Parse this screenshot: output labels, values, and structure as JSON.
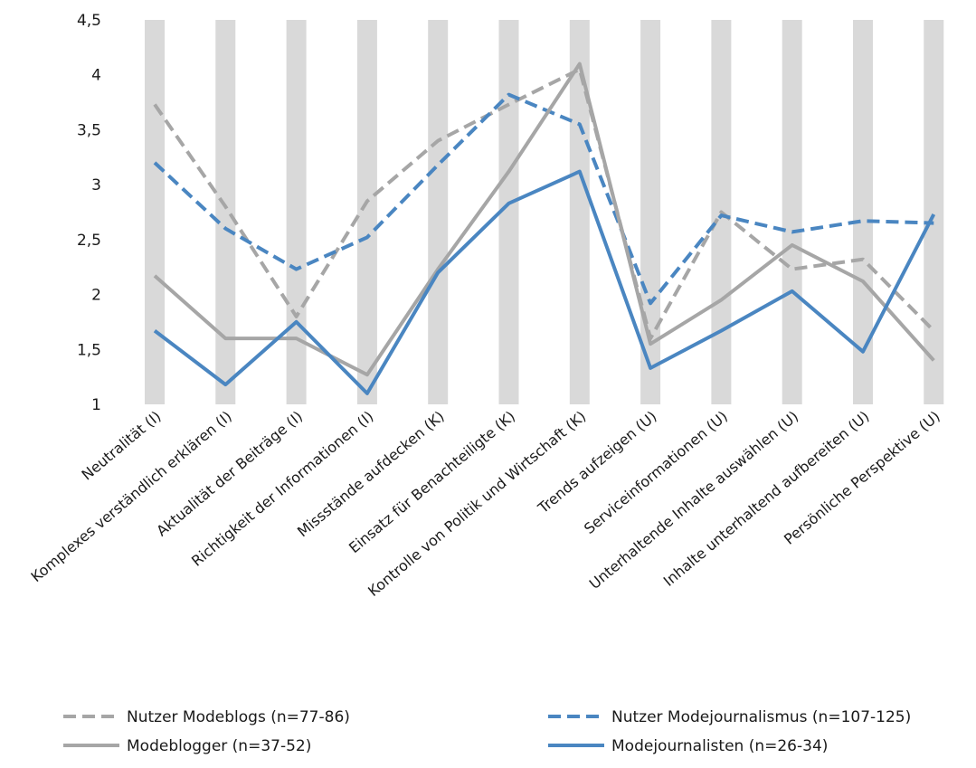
{
  "chart_data": {
    "type": "line",
    "categories": [
      "Neutralität (I)",
      "Komplexes verständlich erklären (I)",
      "Aktualität der Beiträge (I)",
      "Richtigkeit der Informationen (I)",
      "Missstände aufdecken (K)",
      "Einsatz für Benachteiligte (K)",
      "Kontrolle von Politik und Wirtschaft (K)",
      "Trends aufzeigen (U)",
      "Serviceinformationen (U)",
      "Unterhaltende Inhalte auswählen (U)",
      "Inhalte unterhaltend aufbereiten (U)",
      "Persönliche Perspektive (U)"
    ],
    "series": [
      {
        "name": "Nutzer Modeblogs (n=77-86)",
        "color": "#a6a6a6",
        "dash": true,
        "values": [
          3.73,
          2.8,
          1.8,
          2.85,
          3.4,
          3.73,
          4.05,
          1.6,
          2.75,
          2.23,
          2.32,
          1.67
        ]
      },
      {
        "name": "Nutzer Modejournalismus (n=107-125)",
        "color": "#4a86c1",
        "dash": true,
        "values": [
          3.2,
          2.6,
          2.23,
          2.52,
          3.18,
          3.82,
          3.55,
          1.92,
          2.72,
          2.57,
          2.67,
          2.65
        ]
      },
      {
        "name": "Modeblogger (n=37-52)",
        "color": "#a6a6a6",
        "dash": false,
        "values": [
          2.17,
          1.6,
          1.6,
          1.27,
          2.23,
          3.12,
          4.1,
          1.55,
          1.95,
          2.45,
          2.12,
          1.4
        ]
      },
      {
        "name": "Modejournalisten (n=26-34)",
        "color": "#4a86c1",
        "dash": false,
        "values": [
          1.67,
          1.18,
          1.75,
          1.1,
          2.2,
          2.83,
          3.12,
          1.33,
          1.67,
          2.03,
          1.48,
          2.73
        ]
      }
    ],
    "y_ticks": [
      "1",
      "1,5",
      "2",
      "2,5",
      "3",
      "3,5",
      "4",
      "4,5"
    ],
    "y_tick_values": [
      1,
      1.5,
      2,
      2.5,
      3,
      3.5,
      4,
      4.5
    ],
    "ylim": [
      1,
      4.5
    ],
    "legend_placement": "bottom",
    "band_color": "#d9d9d9"
  }
}
